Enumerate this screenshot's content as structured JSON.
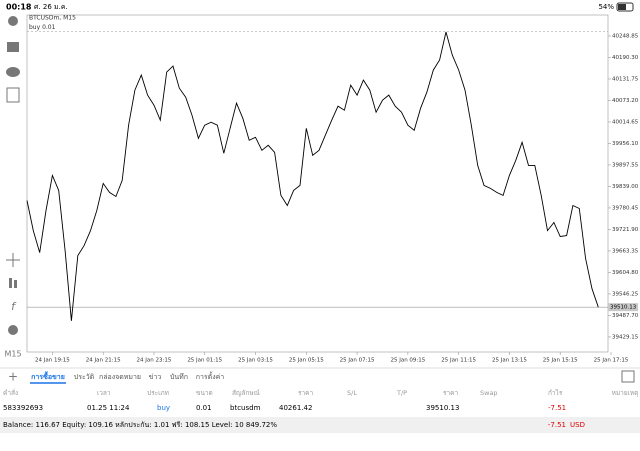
{
  "status_bar": {
    "time": "00:18",
    "date": "ศ. 26 ม.ค.",
    "battery": "54%"
  },
  "chart_data": {
    "type": "line",
    "symbol_label": "BTCUSDm, M15",
    "order_label": "buy 0.01",
    "color": "#000000",
    "values": [
      39800.8,
      39718.8,
      39658.7,
      39773.5,
      39869.1,
      39828.1,
      39664.2,
      39473.0,
      39650.5,
      39677.9,
      39718.8,
      39773.5,
      39847.2,
      39822.7,
      39811.7,
      39855.4,
      40005.7,
      40101.3,
      40142.3,
      40087.7,
      40060.3,
      40019.4,
      40150.5,
      40166.9,
      40106.8,
      40082.2,
      40033.0,
      39970.2,
      40005.7,
      40013.9,
      40005.7,
      39929.2,
      39997.5,
      40065.8,
      40024.8,
      39964.7,
      39972.9,
      39937.4,
      39951.1,
      39931.9,
      39814.5,
      39787.2,
      39828.1,
      39841.8,
      39997.5,
      39923.7,
      39937.4,
      39978.4,
      40019.4,
      40057.6,
      40046.7,
      40115.0,
      40087.7,
      40128.6,
      40101.3,
      40041.2,
      40074.0,
      40087.7,
      40057.6,
      40041.2,
      40005.7,
      39992.0,
      40052.1,
      40095.9,
      40155.9,
      40183.3,
      40259.8,
      40196.9,
      40155.9,
      40101.3,
      40005.7,
      39896.4,
      39841.8,
      39833.6,
      39822.7,
      39814.5,
      39869.1,
      39910.1,
      39959.3,
      39896.4,
      39896.4,
      39814.5,
      39718.8,
      39740.7,
      39702.5,
      39705.2,
      39787.2,
      39779.0,
      39642.4,
      39560.4,
      39510.13
    ],
    "xlim": [
      0,
      92
    ],
    "xticks": [
      {
        "value": 4,
        "label": "24 Jan 19:15"
      },
      {
        "value": 12,
        "label": "24 Jan 21:15"
      },
      {
        "value": 20,
        "label": "24 Jan 23:15"
      },
      {
        "value": 28,
        "label": "25 Jan 01:15"
      },
      {
        "value": 36,
        "label": "25 Jan 03:15"
      },
      {
        "value": 44,
        "label": "25 Jan 05:15"
      },
      {
        "value": 52,
        "label": "25 Jan 07:15"
      },
      {
        "value": 60,
        "label": "25 Jan 09:15"
      },
      {
        "value": 68,
        "label": "25 Jan 11:15"
      },
      {
        "value": 76,
        "label": "25 Jan 13:15"
      },
      {
        "value": 84,
        "label": "25 Jan 15:15"
      },
      {
        "value": 92,
        "label": "25 Jan 17:15"
      }
    ],
    "ylim": [
      39388,
      40306
    ],
    "yticks": [
      40248.85,
      {
        "value": 40190.3,
        "label": "40190.30"
      },
      40131.75,
      {
        "value": 40073.2,
        "label": "40073.20"
      },
      40014.65,
      {
        "value": 39956.1,
        "label": "39956.10"
      },
      39897.55,
      {
        "value": 39839,
        "label": "39839.00"
      },
      39780.45,
      {
        "value": 39721.9,
        "label": "39721.90"
      },
      39663.35,
      {
        "value": 39604.8,
        "label": "39604.80"
      },
      39546.25,
      {
        "value": 39487.7,
        "label": "39487.70"
      },
      39429.15
    ],
    "bid": 39510.13
  },
  "timeframe": "M15",
  "tabs": [
    "การซื้อขาย",
    "ประวัติ",
    "กล่องจดหมาย",
    "ข่าว",
    "บันทึก",
    "การตั้งค่า"
  ],
  "table": {
    "headers": [
      "คำสั่ง",
      "เวลา",
      "ประเภท",
      "ขนาด",
      "สัญลักษณ์",
      "ราคา",
      "S/L",
      "T/P",
      "ราคา",
      "Swap",
      "กำไร",
      "หมายเหตุ"
    ],
    "row": {
      "order": "583392693",
      "time": "01.25 11:24",
      "type": "buy",
      "volume": 0.01,
      "symbol": "btcusdm",
      "open_price": 40261.42,
      "current_price": 39510.13,
      "profit": -7.51
    }
  },
  "balance_bar": {
    "text": "Balance: 116.67 Equity: 109.16 หลักประกัน: 1.01 ฟรี: 108.15 Level: 10 849.72%",
    "profit": -7.51,
    "currency": "USD"
  }
}
